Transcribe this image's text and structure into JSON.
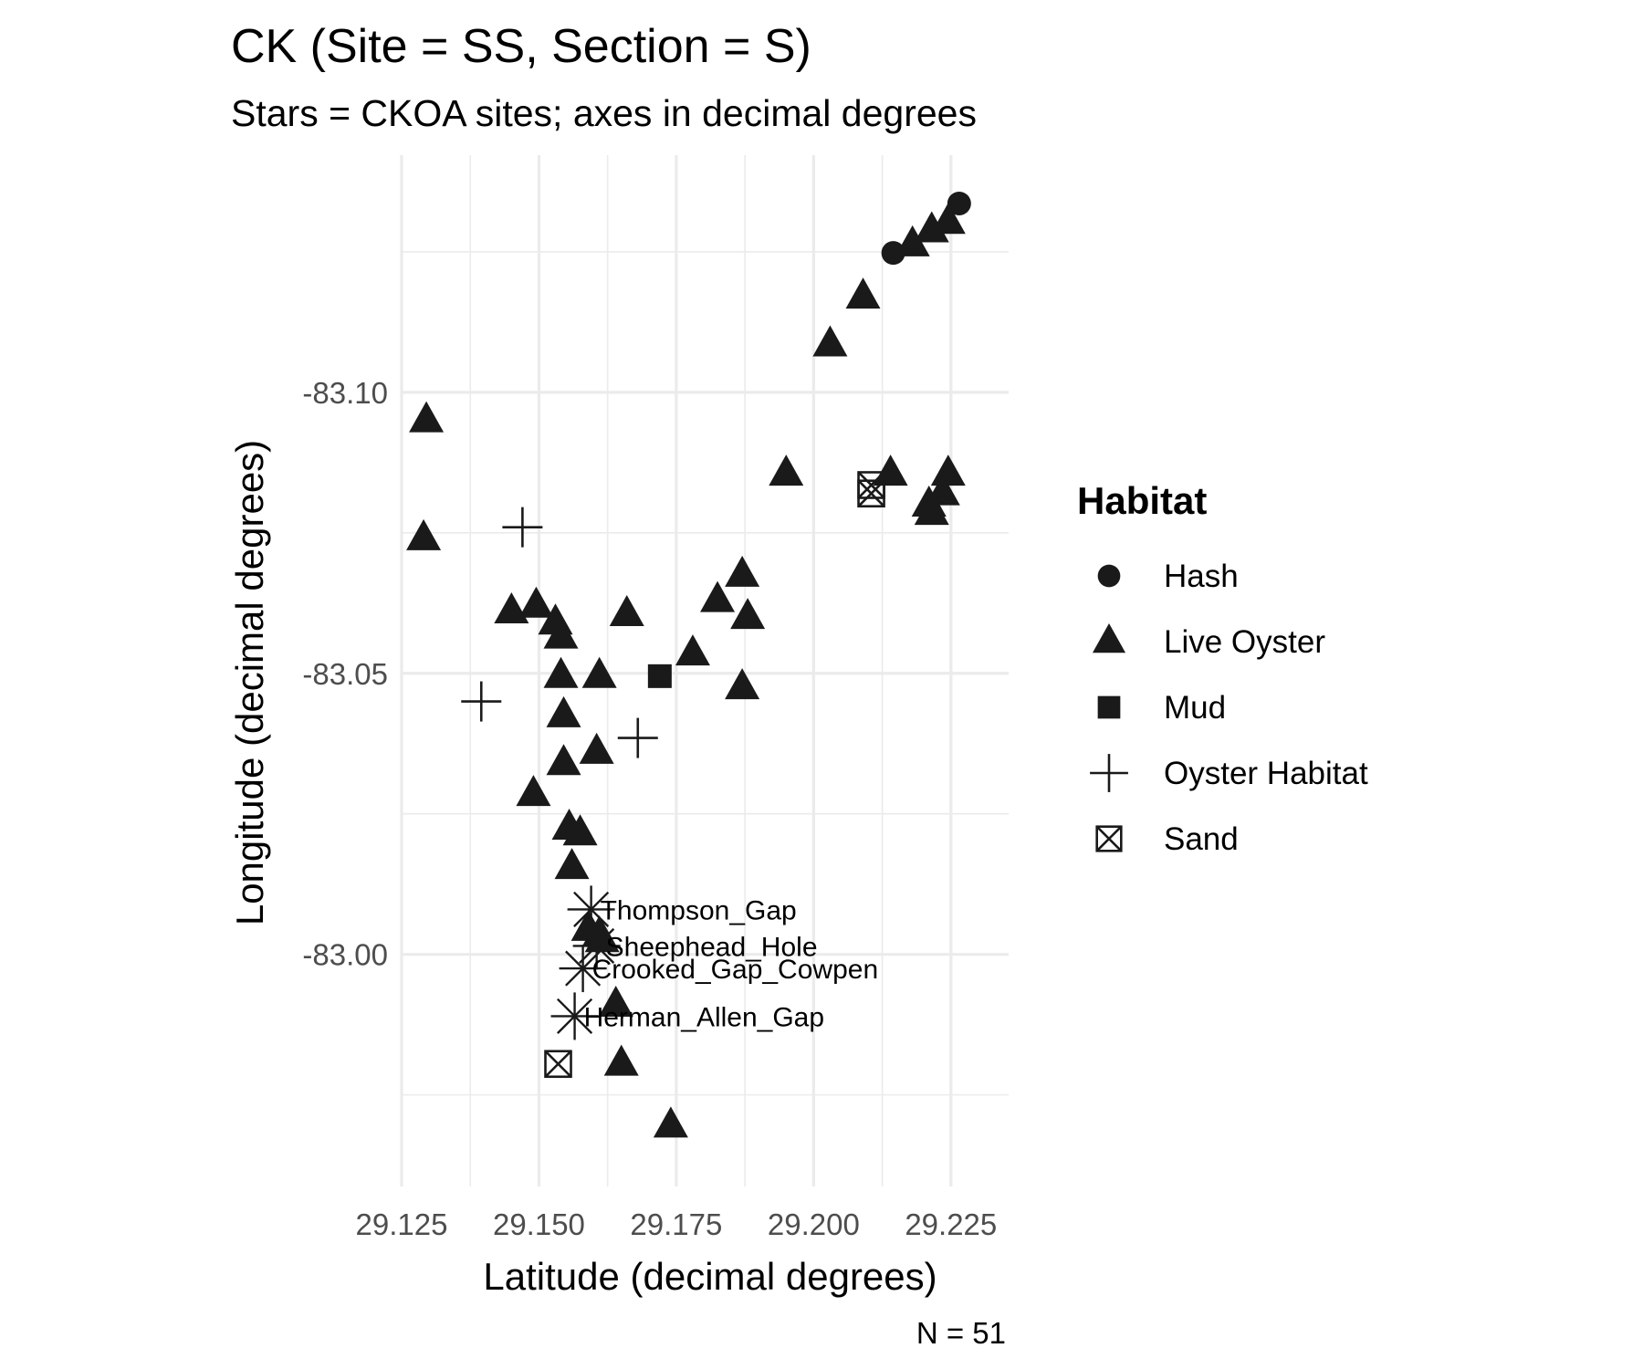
{
  "chart_data": {
    "type": "scatter",
    "title": "CK (Site = SS, Section = S)",
    "subtitle": "Stars = CKOA sites; axes in decimal degrees",
    "xlabel": "Latitude (decimal degrees)",
    "ylabel": "Longitude (decimal degrees)",
    "caption": "N = 51",
    "xlim": [
      29.125,
      29.2355
    ],
    "ylim": [
      -83.1422,
      -82.9587
    ],
    "x_ticks": [
      29.125,
      29.15,
      29.175,
      29.2,
      29.225
    ],
    "x_tick_labels": [
      "29.125",
      "29.150",
      "29.175",
      "29.200",
      "29.225"
    ],
    "y_ticks": [
      -83.1,
      -83.05,
      -83.0
    ],
    "y_tick_labels": [
      "-83.10",
      "-83.05",
      "-83.00"
    ],
    "y_reversed": true,
    "grid": true,
    "legend": {
      "title": "Habitat",
      "position": "right",
      "entries": [
        {
          "name": "Hash",
          "shape": "circle"
        },
        {
          "name": "Live Oyster",
          "shape": "triangle"
        },
        {
          "name": "Mud",
          "shape": "square"
        },
        {
          "name": "Oyster Habitat",
          "shape": "plus"
        },
        {
          "name": "Sand",
          "shape": "square-cross"
        }
      ]
    },
    "series": [
      {
        "name": "Hash",
        "shape": "circle",
        "points": [
          [
            29.2265,
            -83.1336
          ],
          [
            29.2145,
            -83.1248
          ]
        ]
      },
      {
        "name": "Live Oyster",
        "shape": "triangle",
        "points": [
          [
            29.2245,
            -83.1303
          ],
          [
            29.2215,
            -83.1288
          ],
          [
            29.218,
            -83.1263
          ],
          [
            29.209,
            -83.117
          ],
          [
            29.203,
            -83.1085
          ],
          [
            29.1295,
            -83.095
          ],
          [
            29.195,
            -83.0855
          ],
          [
            29.214,
            -83.0855
          ],
          [
            29.2245,
            -83.0855
          ],
          [
            29.2235,
            -83.082
          ],
          [
            29.221,
            -83.08
          ],
          [
            29.2215,
            -83.0785
          ],
          [
            29.129,
            -83.074
          ],
          [
            29.187,
            -83.0675
          ],
          [
            29.1825,
            -83.063
          ],
          [
            29.166,
            -83.0605
          ],
          [
            29.145,
            -83.061
          ],
          [
            29.1495,
            -83.062
          ],
          [
            29.188,
            -83.06
          ],
          [
            29.153,
            -83.059
          ],
          [
            29.154,
            -83.0565
          ],
          [
            29.178,
            -83.0535
          ],
          [
            29.161,
            -83.0495
          ],
          [
            29.154,
            -83.0495
          ],
          [
            29.187,
            -83.0475
          ],
          [
            29.1545,
            -83.0425
          ],
          [
            29.1605,
            -83.036
          ],
          [
            29.1545,
            -83.034
          ],
          [
            29.149,
            -83.0285
          ],
          [
            29.1555,
            -83.0225
          ],
          [
            29.1575,
            -83.0215
          ],
          [
            29.156,
            -83.0155
          ],
          [
            29.159,
            -83.0045
          ],
          [
            29.161,
            -83.0035
          ],
          [
            29.1615,
            -83.0025
          ],
          [
            29.164,
            -82.991
          ],
          [
            29.165,
            -82.9805
          ],
          [
            29.174,
            -82.9695
          ]
        ]
      },
      {
        "name": "Mud",
        "shape": "square",
        "points": [
          [
            29.172,
            -83.0495
          ]
        ]
      },
      {
        "name": "Oyster Habitat",
        "shape": "plus",
        "points": [
          [
            29.147,
            -83.076
          ],
          [
            29.1395,
            -83.045
          ],
          [
            29.168,
            -83.0385
          ]
        ]
      },
      {
        "name": "Sand",
        "shape": "square-cross",
        "points": [
          [
            29.2105,
            -83.0835
          ],
          [
            29.2105,
            -83.082
          ],
          [
            29.1535,
            -82.9805
          ]
        ]
      }
    ],
    "ckoa_sites": {
      "shape": "star",
      "points": [
        {
          "x": 29.1595,
          "y": -83.008,
          "label": "Thompson_Gap"
        },
        {
          "x": 29.1605,
          "y": -83.0015,
          "label": "Sheephead_Hole"
        },
        {
          "x": 29.158,
          "y": -82.9975,
          "label": "Crooked_Gap_Cowpen"
        },
        {
          "x": 29.1565,
          "y": -82.989,
          "label": "Herman_Allen_Gap"
        }
      ]
    }
  }
}
